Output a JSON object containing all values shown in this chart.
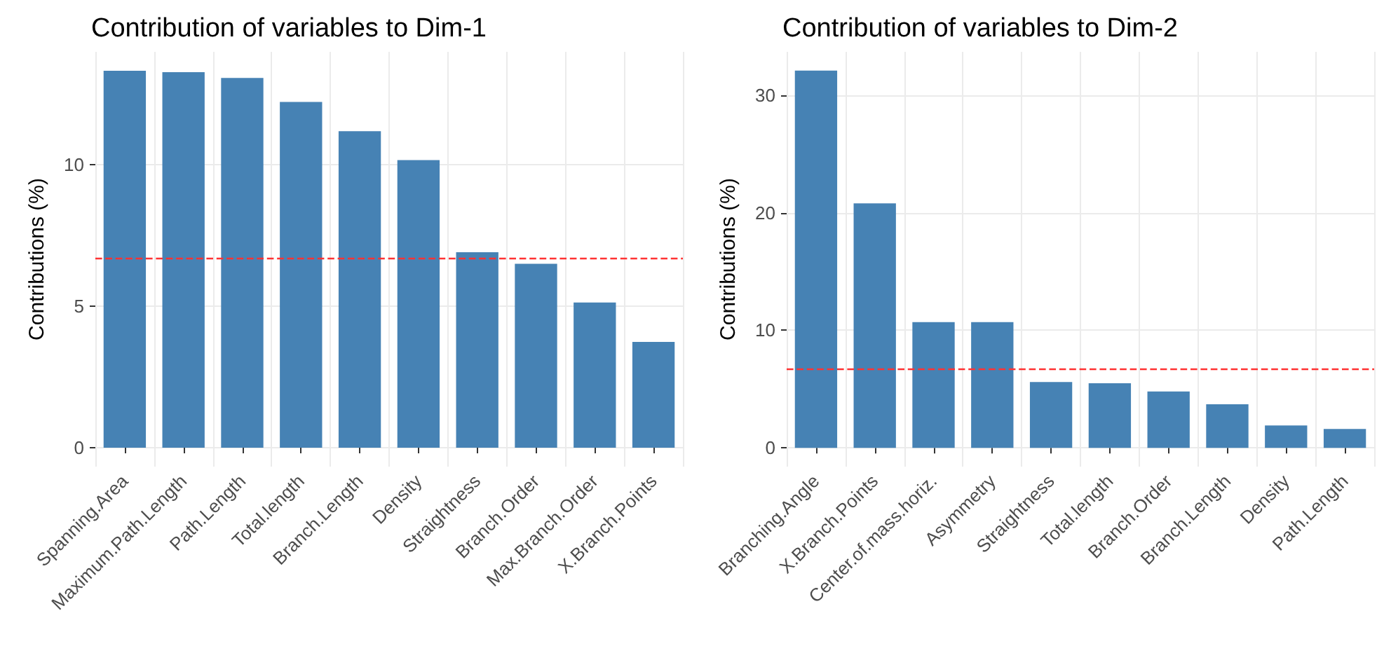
{
  "chart_data": [
    {
      "type": "bar",
      "title": "Contribution of variables to Dim-1",
      "ylabel": "Contributions (%)",
      "categories": [
        "Spanning.Area",
        "Maximum.Path.Length",
        "Path.Length",
        "Total.length",
        "Branch.Length",
        "Density",
        "Straightness",
        "Branch.Order",
        "Max.Branch.Order",
        "X.Branch.Points"
      ],
      "values": [
        13.3,
        13.25,
        13.05,
        12.2,
        11.17,
        10.15,
        6.9,
        6.49,
        5.12,
        3.73
      ],
      "color": "#4682b4",
      "ylim": [
        -0.67,
        13.97
      ],
      "yticks": [
        0,
        5,
        10
      ],
      "grid": true,
      "ref_lines": [
        {
          "axis": "y",
          "value": 6.67,
          "color": "#ff3333",
          "line_style": "dashed"
        }
      ]
    },
    {
      "type": "bar",
      "title": "Contribution of variables to Dim-2",
      "ylabel": "Contributions (%)",
      "categories": [
        "Branching.Angle",
        "X.Branch.Points",
        "Center.of.mass.horiz.",
        "Asymmetry",
        "Straightness",
        "Total.length",
        "Branch.Order",
        "Branch.Length",
        "Density",
        "Path.Length"
      ],
      "values": [
        32.1,
        20.8,
        10.7,
        10.7,
        5.6,
        5.5,
        4.8,
        3.7,
        1.9,
        1.6
      ],
      "color": "#4682b4",
      "ylim": [
        -1.6,
        33.7
      ],
      "yticks": [
        0,
        10,
        20,
        30
      ],
      "grid": true,
      "ref_lines": [
        {
          "axis": "y",
          "value": 6.67,
          "color": "#ff3333",
          "line_style": "dashed"
        }
      ]
    }
  ]
}
